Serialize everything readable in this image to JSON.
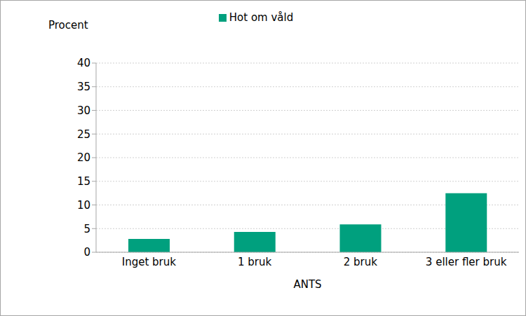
{
  "chart_data": {
    "type": "bar",
    "y_label": "Procent",
    "x_label": "ANTS",
    "categories": [
      "Inget bruk",
      "1 bruk",
      "2 bruk",
      "3 eller fler bruk"
    ],
    "series": [
      {
        "name": "Hot om våld",
        "color": "#00a07e",
        "values": [
          2.8,
          4.3,
          5.9,
          12.5
        ]
      }
    ],
    "ylim": [
      0,
      40
    ],
    "yticks": [
      0,
      5,
      10,
      15,
      20,
      25,
      30,
      35,
      40
    ],
    "grid": true,
    "legend": "top"
  }
}
